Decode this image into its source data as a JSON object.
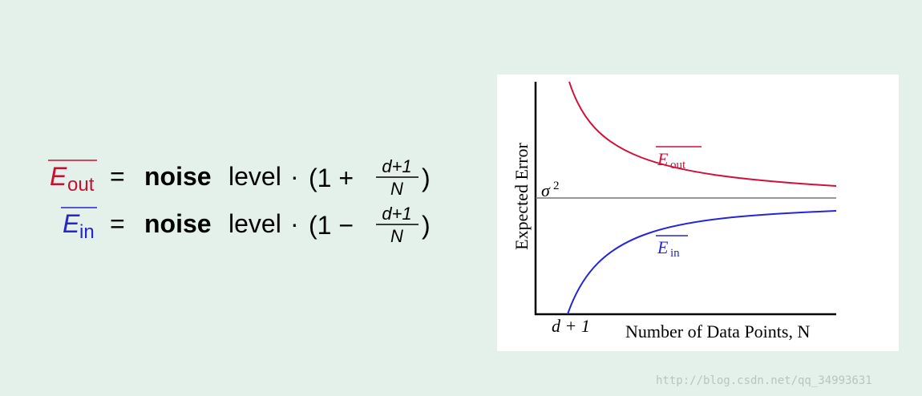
{
  "formulas": [
    {
      "symbol": "E",
      "subscript": "out",
      "operator": "=",
      "noise": "noise",
      "level": "level",
      "dot": "·",
      "open": "(1 +",
      "numerator": "d+1",
      "denominator": "N",
      "close": ")"
    },
    {
      "symbol": "E",
      "subscript": "in",
      "operator": "=",
      "noise": "noise",
      "level": "level",
      "dot": "·",
      "open": "(1 −",
      "numerator": "d+1",
      "denominator": "N",
      "close": ")"
    }
  ],
  "plot": {
    "y_label": "Expected Error",
    "x_label": "Number of Data Points, N",
    "sigma": "σ",
    "sigma_power": "2",
    "start_label": "d + 1",
    "curve_labels": [
      {
        "symbol": "E",
        "subscript": "out"
      },
      {
        "symbol": "E",
        "subscript": "in"
      }
    ]
  },
  "watermark": "http://blog.csdn.net/qq_34993631"
}
